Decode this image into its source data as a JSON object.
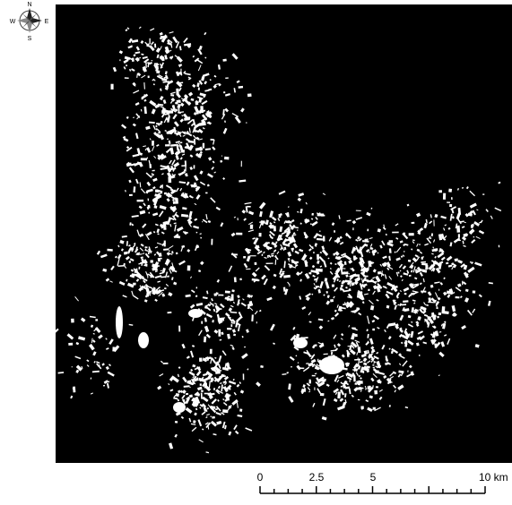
{
  "compass": {
    "north": "N",
    "west": "W",
    "east": "E",
    "south": "S"
  },
  "scale_bar": {
    "labels": [
      "0",
      "2.5",
      "5",
      "10 km"
    ]
  }
}
